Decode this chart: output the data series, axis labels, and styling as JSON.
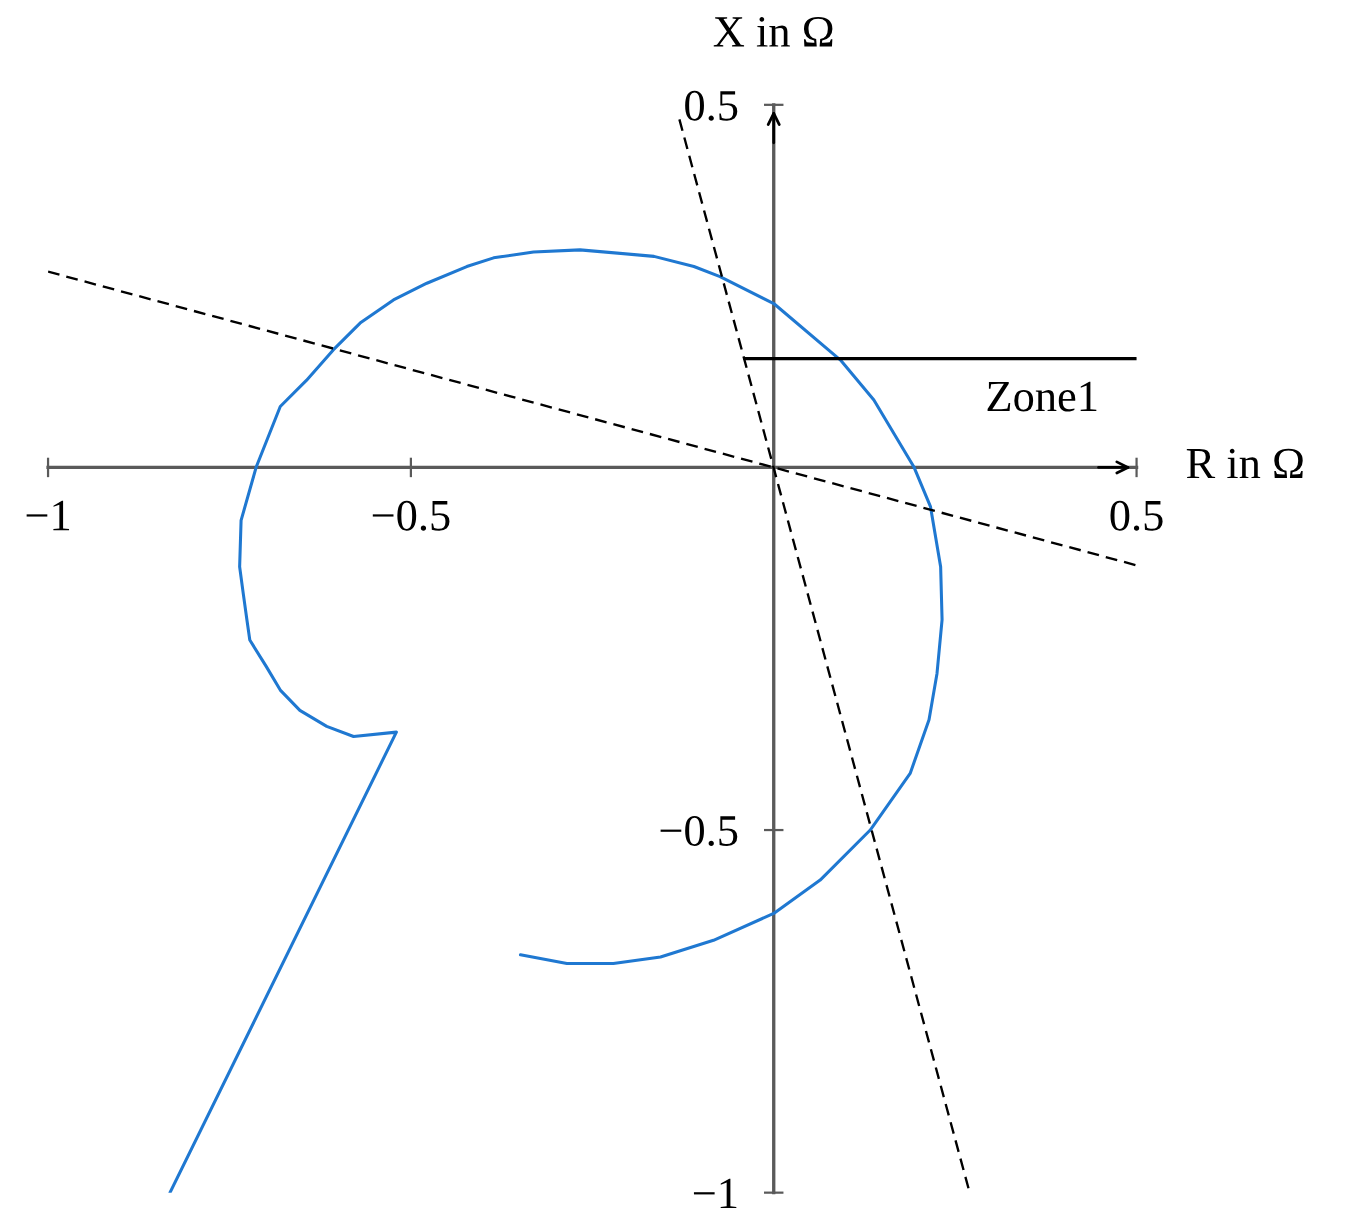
{
  "chart_data": {
    "type": "line",
    "xlabel": "R in Ω",
    "ylabel": "X in Ω",
    "xlim": [
      -1,
      0.5
    ],
    "ylim": [
      -1,
      0.5
    ],
    "xticks": [
      {
        "value": -1,
        "label": "−1"
      },
      {
        "value": -0.5,
        "label": "−0.5"
      },
      0.5
    ],
    "yticks": [
      {
        "value": -1,
        "label": "−1"
      },
      {
        "value": -0.5,
        "label": "−0.5"
      },
      0.5
    ],
    "series": [
      {
        "color": "#1f78d1",
        "x": [
          -0.832,
          -0.52,
          -0.579,
          -0.616,
          -0.653,
          -0.68,
          -0.699,
          -0.722,
          -0.726,
          -0.731,
          -0.736,
          -0.734,
          -0.713,
          -0.68,
          -0.644,
          -0.607,
          -0.57,
          -0.524,
          -0.478,
          -0.423,
          -0.386,
          -0.331,
          -0.267,
          -0.165,
          -0.11,
          -0.074,
          0.0,
          0.092,
          0.138,
          0.193,
          0.216,
          0.23,
          0.232,
          0.225,
          0.214,
          0.188,
          0.133,
          0.064,
          0.0,
          -0.083,
          -0.156,
          -0.221,
          -0.285,
          -0.349
        ],
        "values": [
          -1.0,
          -0.365,
          -0.371,
          -0.357,
          -0.335,
          -0.307,
          -0.275,
          -0.238,
          -0.21,
          -0.174,
          -0.137,
          -0.073,
          0.001,
          0.084,
          0.12,
          0.162,
          0.199,
          0.231,
          0.254,
          0.277,
          0.289,
          0.297,
          0.3,
          0.291,
          0.277,
          0.263,
          0.226,
          0.148,
          0.093,
          0.001,
          -0.054,
          -0.137,
          -0.21,
          -0.284,
          -0.348,
          -0.422,
          -0.5,
          -0.569,
          -0.615,
          -0.652,
          -0.675,
          -0.684,
          -0.684,
          -0.672
        ]
      },
      {
        "color": "#000000",
        "line_style": "dashed",
        "x": [
          -1,
          0.5
        ],
        "values": [
          0.27,
          -0.135
        ]
      },
      {
        "color": "#000000",
        "line_style": "dashed",
        "x": [
          -0.13,
          0.27
        ],
        "values": [
          0.48,
          -1
        ]
      },
      {
        "color": "#000000",
        "x": [
          -0.04,
          0.5
        ],
        "values": [
          0.15,
          0.15
        ]
      }
    ],
    "annotations": [
      {
        "text": "Zone1",
        "x": 0.37,
        "y": 0.15
      }
    ]
  }
}
